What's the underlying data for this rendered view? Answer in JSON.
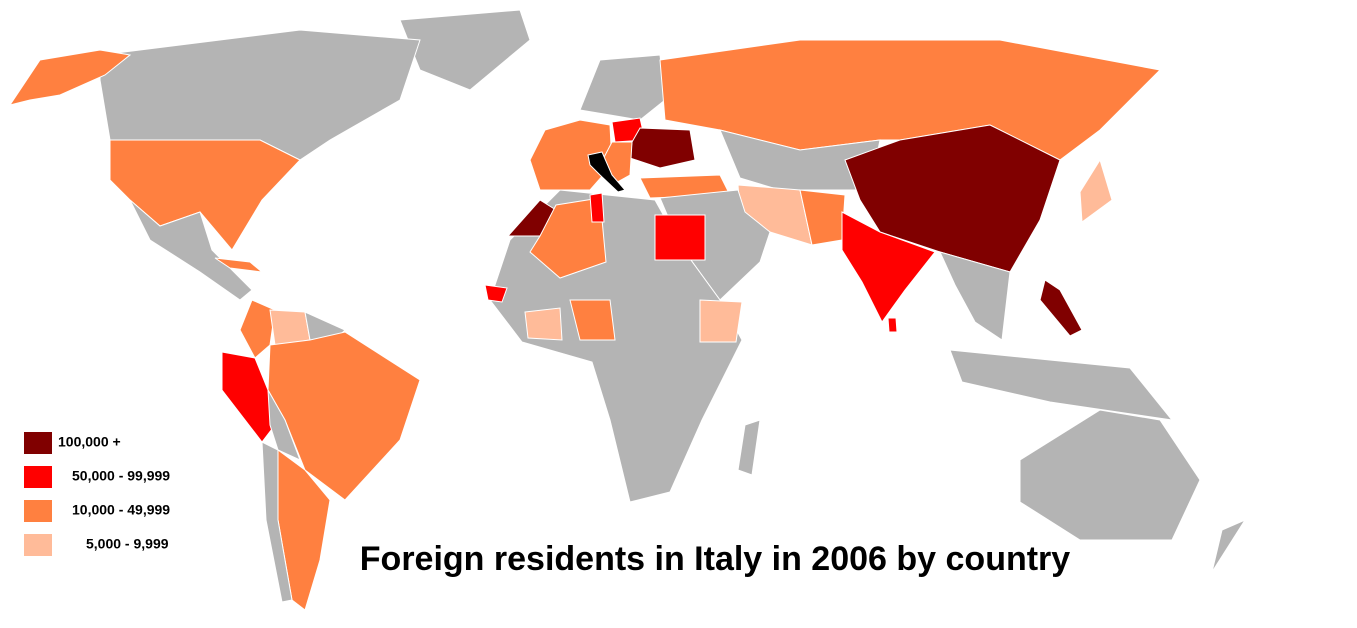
{
  "title": "Foreign residents in Italy in 2006 by country",
  "legend": [
    {
      "label": "100,000 +",
      "color": "#800000"
    },
    {
      "label": "50,000 - 99,999",
      "color": "#ff0000"
    },
    {
      "label": "10,000 - 49,999",
      "color": "#ff8040"
    },
    {
      "label": "5,000 -  9,999",
      "color": "#ffbb99"
    }
  ]
}
